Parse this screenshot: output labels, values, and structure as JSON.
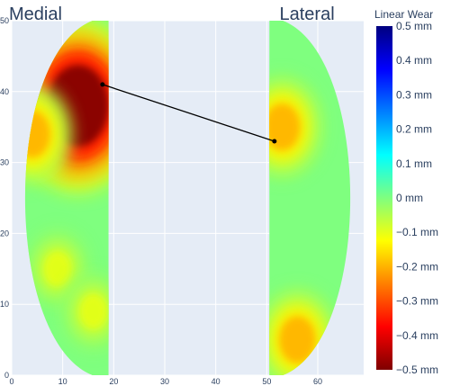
{
  "chart_data": {
    "type": "heatmap",
    "title": "",
    "xlabel": "",
    "ylabel": "",
    "xlim": [
      0,
      69
    ],
    "ylim": [
      0,
      50
    ],
    "x_ticks": [
      0,
      10,
      20,
      30,
      40,
      50,
      60
    ],
    "y_ticks": [
      0,
      10,
      20,
      30,
      40,
      50
    ],
    "grid": true,
    "region_labels": [
      "Medial",
      "Lateral"
    ],
    "colorbar": {
      "title": "Linear Wear",
      "range": [
        -0.5,
        0.5
      ],
      "ticks": [
        "0.5 mm",
        "0.4 mm",
        "0.3 mm",
        "0.2 mm",
        "0.1 mm",
        "0 mm",
        "−0.1 mm",
        "−0.2 mm",
        "−0.3 mm",
        "−0.4 mm",
        "−0.5 mm"
      ],
      "colorscale": [
        "#7f0000",
        "#ff0000",
        "#ff7f00",
        "#ffff00",
        "#7fff7f",
        "#00ffff",
        "#007fff",
        "#0000ff",
        "#00007f"
      ]
    },
    "background_value_mm": 0,
    "wear_patches_mm": [
      {
        "region": "Medial",
        "center": [
          13,
          38
        ],
        "value": -0.5
      },
      {
        "region": "Medial",
        "center": [
          4,
          34
        ],
        "value": -0.2
      },
      {
        "region": "Medial",
        "center": [
          9,
          15
        ],
        "value": -0.1
      },
      {
        "region": "Medial",
        "center": [
          16,
          9
        ],
        "value": -0.1
      },
      {
        "region": "Lateral",
        "center": [
          53,
          35
        ],
        "value": -0.2
      },
      {
        "region": "Lateral",
        "center": [
          56,
          5
        ],
        "value": -0.2
      }
    ],
    "connector_points": [
      {
        "x": 17.8,
        "y": 41
      },
      {
        "x": 51.5,
        "y": 33
      }
    ]
  }
}
